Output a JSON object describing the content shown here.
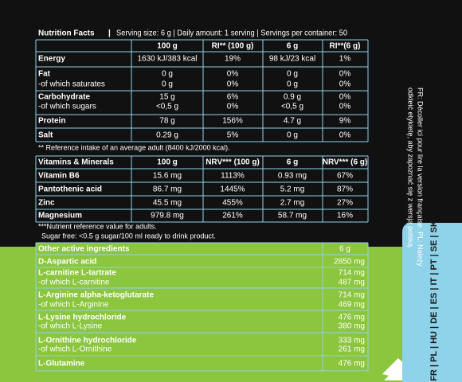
{
  "header": {
    "title": "Nutrition Facts",
    "separator": "|",
    "serving": "Serving size: 6 g | Daily amount: 1 serving | Servings per container: 50"
  },
  "nutrition": {
    "columns": [
      "100 g",
      "RI** (100 g)",
      "6 g",
      "RI**(6 g)"
    ],
    "rows": [
      [
        "Energy",
        "1630 kJ/383 kcal",
        "19%",
        "98 kJ/23 kcal",
        "1%"
      ],
      [
        "Fat",
        "0 g",
        "0%",
        "0 g",
        "0%"
      ],
      [
        "-of which saturates",
        "0 g",
        "0%",
        "0 g",
        "0%"
      ],
      [
        "Carbohydrate",
        "15 g",
        "6%",
        "0.9 g",
        "0%"
      ],
      [
        "-of which sugars",
        "<0,5 g",
        "0%",
        "<0,5 g",
        "0%"
      ],
      [
        "Protein",
        "78 g",
        "156%",
        "4.7 g",
        "9%"
      ],
      [
        "Salt",
        "0.29 g",
        "5%",
        "0 g",
        "0%"
      ]
    ],
    "note": "** Reference intake of an average adult (8400 kJ/2000 kcal)."
  },
  "vitamins": {
    "columns": [
      "Vitamins & Minerals",
      "100 g",
      "NRV*** (100 g)",
      "6 g",
      "NRV*** (6 g)"
    ],
    "rows": [
      [
        "Vitamin B6",
        "15.6 mg",
        "1113%",
        "0.93 mg",
        "67%"
      ],
      [
        "Pantothenic acid",
        "86.7 mg",
        "1445%",
        "5.2 mg",
        "87%"
      ],
      [
        "Zinc",
        "45.5 mg",
        "455%",
        "2.7 mg",
        "27%"
      ],
      [
        "Magnesium",
        "979.8 mg",
        "261%",
        "58.7 mg",
        "16%"
      ]
    ],
    "notes": [
      "***Nutrient reference value for adults.",
      "Sugar free: <0.5 g sugar/100 ml ready to drink product."
    ]
  },
  "ingredients": {
    "header": "Other active ingredients",
    "column": "6 g",
    "rows": [
      [
        "D-Aspartic acid",
        "2850 mg"
      ],
      [
        "L-carnitine L-tartrate",
        "714 mg"
      ],
      [
        "-of which L-carnitine",
        "487 mg"
      ],
      [
        "L-Arginine alpha-ketoglutarate",
        "714 mg"
      ],
      [
        "-of which L-Arginine",
        "469 mg"
      ],
      [
        "L-Lysine hydrochloride",
        "476 mg"
      ],
      [
        "-of which L-Lysine",
        "380 mg"
      ],
      [
        "L-Ornithine hydrochloride",
        "333 mg"
      ],
      [
        "-of which L-Ornithine",
        "261 mg"
      ],
      [
        "L-Glutamine",
        "476 mg"
      ]
    ]
  },
  "side": {
    "translation": [
      "FR: Décoller ici pour lire la version française. PL: Należy",
      "odkleić etykietę, aby zapoznać się z wersją polską."
    ],
    "languages": "FR | PL | HU | DE | ES | IT | PT | SE | SK"
  }
}
